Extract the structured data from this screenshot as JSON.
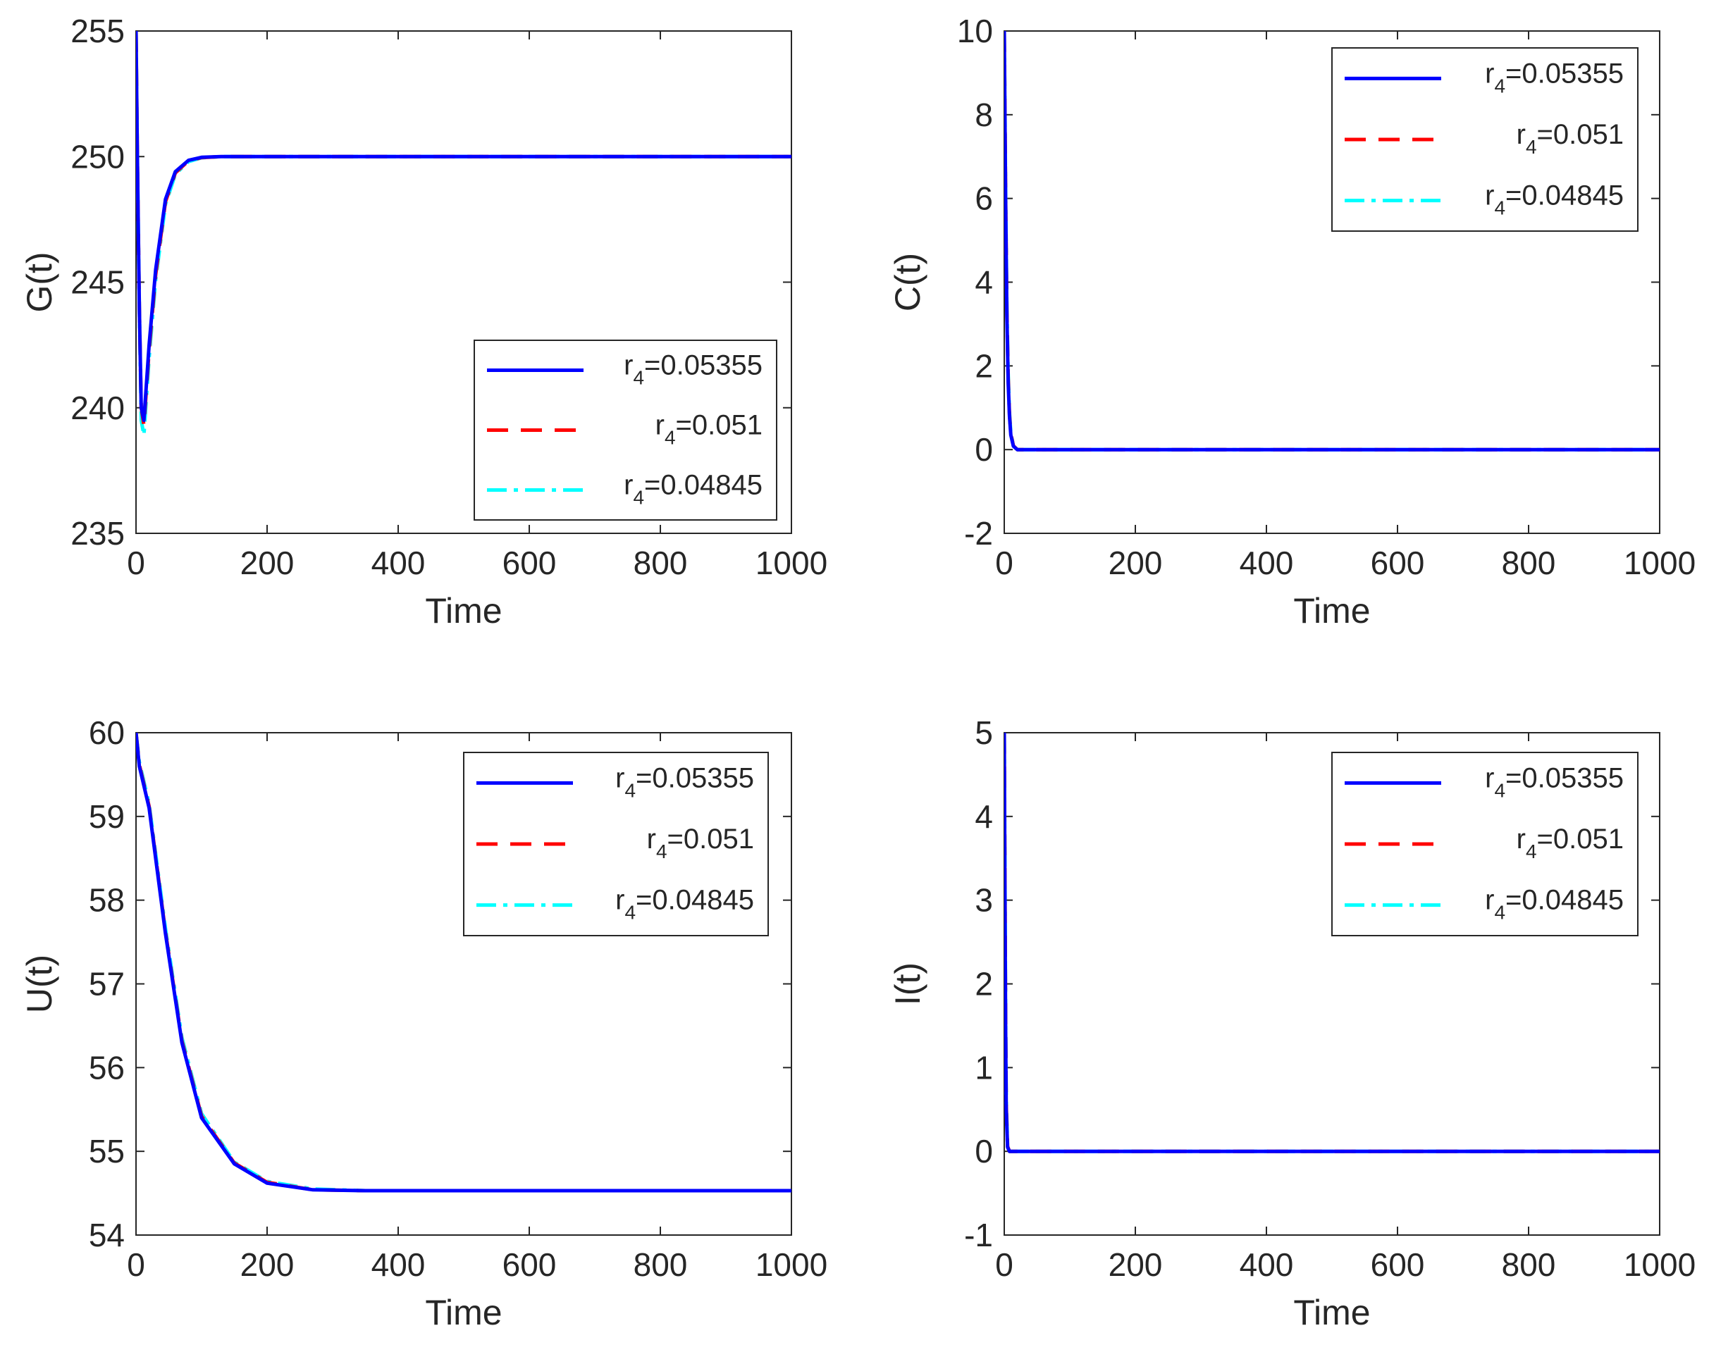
{
  "chart_data": [
    {
      "type": "line",
      "id": "G",
      "xlabel": "Time",
      "ylabel": "G(t)",
      "xlim": [
        0,
        1000
      ],
      "ylim": [
        235,
        255
      ],
      "xticks": [
        "0",
        "200",
        "400",
        "600",
        "800",
        "1000"
      ],
      "yticks": [
        "235",
        "240",
        "245",
        "250",
        "255"
      ],
      "legend_position": "bottom-right",
      "series": [
        {
          "name": "r4=0.05355",
          "label_main": "r",
          "label_sub": "4",
          "label_value": "=0.05355",
          "color": "#0000ff",
          "style": "solid",
          "x": [
            0,
            2,
            5,
            8,
            12,
            20,
            30,
            45,
            60,
            80,
            100,
            130,
            1000
          ],
          "y": [
            255,
            250,
            244,
            240,
            239.5,
            242.5,
            245.5,
            248.3,
            249.4,
            249.85,
            249.97,
            250,
            250
          ]
        },
        {
          "name": "r4=0.051",
          "label_main": "r",
          "label_sub": "4",
          "label_value": "=0.051",
          "color": "#ff0000",
          "style": "dashed",
          "x": [
            0,
            2,
            5,
            8,
            12,
            20,
            30,
            45,
            60,
            80,
            100,
            130,
            1000
          ],
          "y": [
            255,
            250,
            244,
            240,
            239.3,
            242.3,
            245.3,
            248.2,
            249.35,
            249.83,
            249.96,
            250,
            250
          ]
        },
        {
          "name": "r4=0.04845",
          "label_main": "r",
          "label_sub": "4",
          "label_value": "=0.04845",
          "color": "#00ffff",
          "style": "dashdot",
          "x": [
            0,
            2,
            5,
            8,
            12,
            20,
            30,
            45,
            60,
            80,
            100,
            130,
            1000
          ],
          "y": [
            255,
            250,
            244,
            239.5,
            238.9,
            242.0,
            245.1,
            248.1,
            249.3,
            249.8,
            249.95,
            250,
            250
          ]
        }
      ]
    },
    {
      "type": "line",
      "id": "C",
      "xlabel": "Time",
      "ylabel": "C(t)",
      "xlim": [
        0,
        1000
      ],
      "ylim": [
        -2,
        10
      ],
      "xticks": [
        "0",
        "200",
        "400",
        "600",
        "800",
        "1000"
      ],
      "yticks": [
        "-2",
        "0",
        "2",
        "4",
        "6",
        "8",
        "10"
      ],
      "legend_position": "top-right",
      "series": [
        {
          "name": "r4=0.05355",
          "label_main": "r",
          "label_sub": "4",
          "label_value": "=0.05355",
          "color": "#0000ff",
          "style": "solid",
          "x": [
            0,
            2,
            4,
            6,
            8,
            10,
            14,
            20,
            1000
          ],
          "y": [
            10,
            6,
            3.2,
            1.6,
            0.8,
            0.35,
            0.08,
            0,
            0
          ]
        },
        {
          "name": "r4=0.051",
          "label_main": "r",
          "label_sub": "4",
          "label_value": "=0.051",
          "color": "#ff0000",
          "style": "dashed",
          "x": [
            0,
            2,
            4,
            6,
            8,
            10,
            14,
            20,
            1000
          ],
          "y": [
            10,
            6.1,
            3.3,
            1.7,
            0.85,
            0.38,
            0.09,
            0,
            0
          ]
        },
        {
          "name": "r4=0.04845",
          "label_main": "r",
          "label_sub": "4",
          "label_value": "=0.04845",
          "color": "#00ffff",
          "style": "dashdot",
          "x": [
            0,
            2,
            4,
            6,
            8,
            10,
            14,
            20,
            1000
          ],
          "y": [
            10,
            6.2,
            3.4,
            1.8,
            0.9,
            0.4,
            0.1,
            0,
            0
          ]
        }
      ]
    },
    {
      "type": "line",
      "id": "U",
      "xlabel": "Time",
      "ylabel": "U(t)",
      "xlim": [
        0,
        1000
      ],
      "ylim": [
        54,
        60
      ],
      "xticks": [
        "0",
        "200",
        "400",
        "600",
        "800",
        "1000"
      ],
      "yticks": [
        "54",
        "55",
        "56",
        "57",
        "58",
        "59",
        "60"
      ],
      "legend_position": "top-right",
      "series": [
        {
          "name": "r4=0.05355",
          "label_main": "r",
          "label_sub": "4",
          "label_value": "=0.05355",
          "color": "#0000ff",
          "style": "solid",
          "x": [
            0,
            5,
            20,
            45,
            70,
            100,
            150,
            200,
            270,
            350,
            450,
            1000
          ],
          "y": [
            60,
            59.6,
            59.1,
            57.6,
            56.3,
            55.4,
            54.85,
            54.62,
            54.54,
            54.53,
            54.53,
            54.53
          ]
        },
        {
          "name": "r4=0.051",
          "label_main": "r",
          "label_sub": "4",
          "label_value": "=0.051",
          "color": "#ff0000",
          "style": "dashed",
          "x": [
            0,
            5,
            20,
            45,
            70,
            100,
            150,
            200,
            270,
            350,
            450,
            1000
          ],
          "y": [
            60,
            59.62,
            59.12,
            57.62,
            56.32,
            55.42,
            54.86,
            54.63,
            54.54,
            54.53,
            54.53,
            54.53
          ]
        },
        {
          "name": "r4=0.04845",
          "label_main": "r",
          "label_sub": "4",
          "label_value": "=0.04845",
          "color": "#00ffff",
          "style": "dashdot",
          "x": [
            0,
            5,
            20,
            45,
            70,
            100,
            150,
            200,
            270,
            350,
            450,
            1000
          ],
          "y": [
            60,
            59.65,
            59.15,
            57.66,
            56.36,
            55.45,
            54.87,
            54.64,
            54.55,
            54.53,
            54.53,
            54.53
          ]
        }
      ]
    },
    {
      "type": "line",
      "id": "I",
      "xlabel": "Time",
      "ylabel": "I(t)",
      "xlim": [
        0,
        1000
      ],
      "ylim": [
        -1,
        5
      ],
      "xticks": [
        "0",
        "200",
        "400",
        "600",
        "800",
        "1000"
      ],
      "yticks": [
        "-1",
        "0",
        "1",
        "2",
        "3",
        "4",
        "5"
      ],
      "legend_position": "top-right",
      "series": [
        {
          "name": "r4=0.05355",
          "label_main": "r",
          "label_sub": "4",
          "label_value": "=0.05355",
          "color": "#0000ff",
          "style": "solid",
          "x": [
            0,
            1,
            2,
            3,
            5,
            8,
            1000
          ],
          "y": [
            5,
            3.2,
            1.5,
            0.5,
            0.05,
            0,
            0
          ]
        },
        {
          "name": "r4=0.051",
          "label_main": "r",
          "label_sub": "4",
          "label_value": "=0.051",
          "color": "#ff0000",
          "style": "dashed",
          "x": [
            0,
            1,
            2,
            3,
            5,
            8,
            1000
          ],
          "y": [
            5,
            3.3,
            1.6,
            0.55,
            0.06,
            0,
            0
          ]
        },
        {
          "name": "r4=0.04845",
          "label_main": "r",
          "label_sub": "4",
          "label_value": "=0.04845",
          "color": "#00ffff",
          "style": "dashdot",
          "x": [
            0,
            1,
            2,
            3,
            5,
            8,
            1000
          ],
          "y": [
            5,
            3.4,
            1.7,
            0.6,
            0.07,
            0,
            0
          ]
        }
      ]
    }
  ]
}
